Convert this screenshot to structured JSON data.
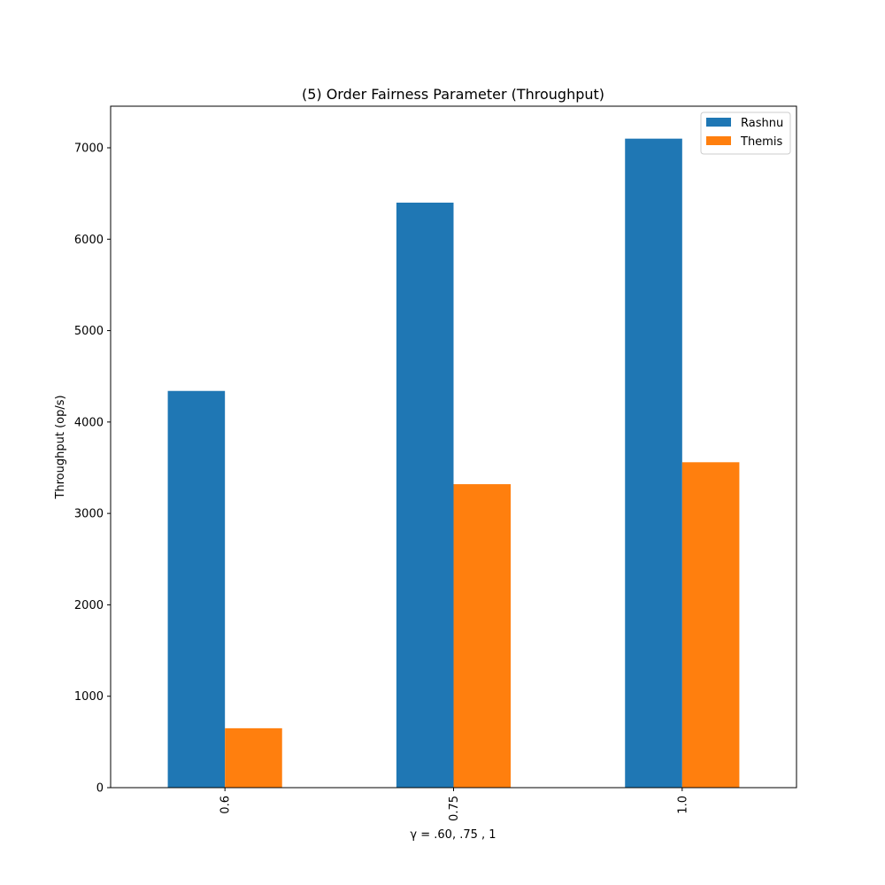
{
  "chart_data": {
    "type": "bar",
    "title": "(5) Order Fairness Parameter (Throughput)",
    "xlabel": "γ = .60, .75 , 1",
    "ylabel": "Throughput (op/s)",
    "categories": [
      "0.6",
      "0.75",
      "1.0"
    ],
    "series": [
      {
        "name": "Rashnu",
        "color": "#1f77b4",
        "values": [
          4340,
          6400,
          7100
        ]
      },
      {
        "name": "Themis",
        "color": "#ff7f0e",
        "values": [
          650,
          3320,
          3560
        ]
      }
    ],
    "ylim": [
      0,
      7455
    ],
    "yticks": [
      "0",
      "1000",
      "2000",
      "3000",
      "4000",
      "5000",
      "6000",
      "7000"
    ],
    "grid": false,
    "legend_position": "top-right"
  }
}
